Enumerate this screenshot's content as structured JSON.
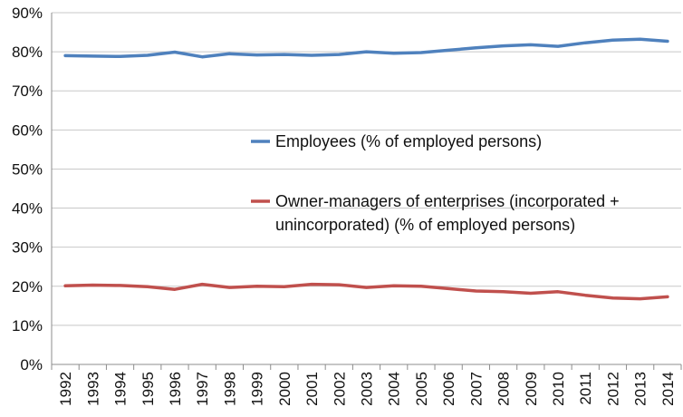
{
  "chart_data": {
    "type": "line",
    "title": "",
    "xlabel": "",
    "ylabel": "",
    "categories": [
      "1992",
      "1993",
      "1994",
      "1995",
      "1996",
      "1997",
      "1998",
      "1999",
      "2000",
      "2001",
      "2002",
      "2003",
      "2004",
      "2005",
      "2006",
      "2007",
      "2008",
      "2009",
      "2010",
      "2011",
      "2012",
      "2013",
      "2014"
    ],
    "ylim": [
      0,
      90
    ],
    "y_ticks": [
      "0%",
      "10%",
      "20%",
      "30%",
      "40%",
      "50%",
      "60%",
      "70%",
      "80%",
      "90%"
    ],
    "y_unit": "%",
    "grid": "horizontal",
    "legend_placement": "center",
    "series": [
      {
        "name": "Employees (% of employed persons)",
        "legend_lines": [
          "Employees (% of employed persons)"
        ],
        "color": "#4f81bd",
        "values": [
          79.0,
          78.9,
          78.8,
          79.1,
          79.9,
          78.7,
          79.5,
          79.2,
          79.3,
          79.1,
          79.3,
          80.0,
          79.6,
          79.8,
          80.4,
          81.0,
          81.5,
          81.8,
          81.4,
          82.3,
          83.0,
          83.2,
          82.7
        ]
      },
      {
        "name": "Owner-managers of enterprises (incorporated + unincorporated) (% of employed persons)",
        "legend_lines": [
          "Owner-managers of enterprises (incorporated +",
          "unincorporated) (% of employed persons)"
        ],
        "color": "#c0504d",
        "values": [
          20.1,
          20.3,
          20.2,
          19.9,
          19.2,
          20.5,
          19.7,
          20.0,
          19.9,
          20.5,
          20.4,
          19.7,
          20.1,
          20.0,
          19.4,
          18.8,
          18.6,
          18.2,
          18.6,
          17.7,
          17.0,
          16.8,
          17.3
        ]
      }
    ]
  }
}
